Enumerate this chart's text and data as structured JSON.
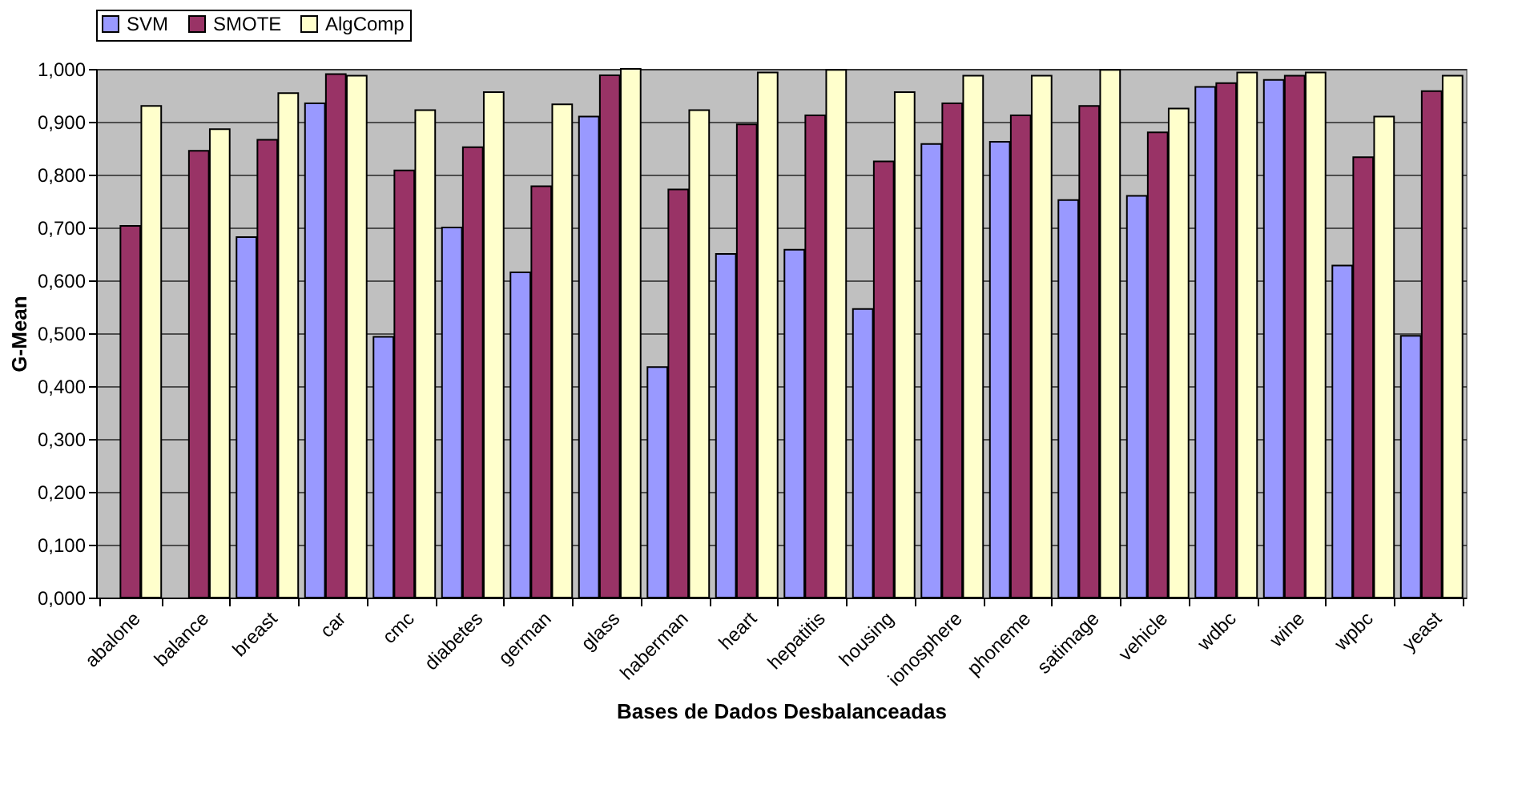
{
  "chart_data": {
    "type": "bar",
    "xlabel": "Bases de Dados Desbalanceadas",
    "ylabel": "G-Mean",
    "categories": [
      "abalone",
      "balance",
      "breast",
      "car",
      "cmc",
      "diabetes",
      "german",
      "glass",
      "haberman",
      "heart",
      "hepatitis",
      "housing",
      "ionosphere",
      "phoneme",
      "satimage",
      "vehicle",
      "wdbc",
      "wine",
      "wpbc",
      "yeast"
    ],
    "series": [
      {
        "name": "SVM",
        "color": "#9999ff",
        "values": [
          null,
          null,
          0.682,
          0.935,
          0.493,
          0.7,
          0.615,
          0.91,
          0.436,
          0.65,
          0.658,
          0.546,
          0.858,
          0.862,
          0.752,
          0.76,
          0.966,
          0.979,
          0.628,
          0.495
        ]
      },
      {
        "name": "SMOTE",
        "color": "#993366",
        "values": [
          0.703,
          0.845,
          0.866,
          0.99,
          0.808,
          0.852,
          0.778,
          0.988,
          0.772,
          0.895,
          0.912,
          0.825,
          0.935,
          0.912,
          0.93,
          0.88,
          0.973,
          0.987,
          0.833,
          0.958
        ]
      },
      {
        "name": "AlgComp",
        "color": "#ffffcc",
        "values": [
          0.93,
          0.886,
          0.954,
          0.987,
          0.922,
          0.956,
          0.933,
          1.0,
          0.922,
          0.993,
          0.998,
          0.956,
          0.987,
          0.987,
          0.998,
          0.925,
          0.993,
          0.993,
          0.91,
          0.987
        ]
      }
    ],
    "ylim": [
      0,
      1
    ],
    "yticks": [
      {
        "value": 0,
        "label": "0,000"
      },
      {
        "value": 0.1,
        "label": "0,100"
      },
      {
        "value": 0.2,
        "label": "0,200"
      },
      {
        "value": 0.3,
        "label": "0,300"
      },
      {
        "value": 0.4,
        "label": "0,400"
      },
      {
        "value": 0.5,
        "label": "0,500"
      },
      {
        "value": 0.6,
        "label": "0,600"
      },
      {
        "value": 0.7,
        "label": "0,700"
      },
      {
        "value": 0.8,
        "label": "0,800"
      },
      {
        "value": 0.9,
        "label": "0,900"
      },
      {
        "value": 1,
        "label": "1,000"
      }
    ],
    "grid": "y",
    "legend": "top"
  }
}
